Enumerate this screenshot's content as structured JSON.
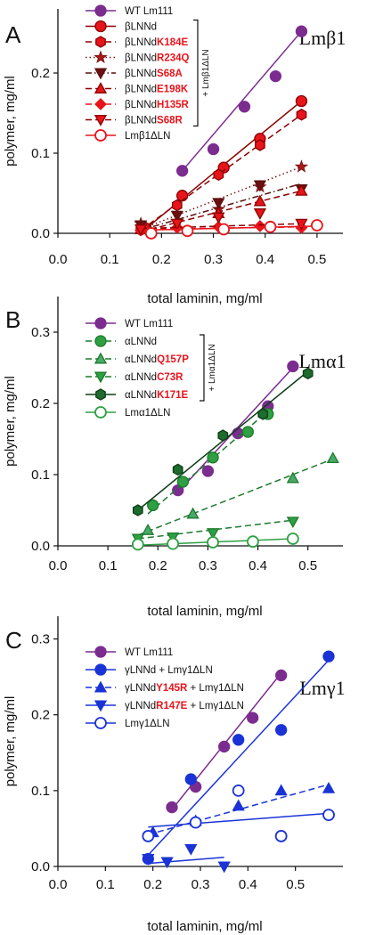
{
  "chart_data": [
    {
      "type": "scatter",
      "panel_label": "A",
      "title": "Lmβ1",
      "xlabel": "total laminin, mg/ml",
      "ylabel": "polymer, mg/ml",
      "xlim": [
        0.0,
        0.55
      ],
      "ylim": [
        0.0,
        0.28
      ],
      "xticks": [
        "0.0",
        "0.1",
        "0.2",
        "0.3",
        "0.4",
        "0.5"
      ],
      "yticks": [
        "0.0",
        "0.1",
        "0.2"
      ],
      "bracket_label": "+ Lmβ1ΔLN",
      "series": [
        {
          "name": "WT Lm111",
          "name_parts": [
            [
              "WT Lm111",
              "#111111"
            ]
          ],
          "color": "#7b2c8f",
          "marker": "circle",
          "fill": "#7b2c8f",
          "line": "solid",
          "x": [
            0.24,
            0.3,
            0.36,
            0.42,
            0.47
          ],
          "y": [
            0.078,
            0.105,
            0.158,
            0.196,
            0.252
          ],
          "fit": [
            [
              0.24,
              0.078
            ],
            [
              0.47,
              0.252
            ]
          ]
        },
        {
          "name": "βLNNd",
          "name_parts": [
            [
              "βLNNd",
              "#111111"
            ]
          ],
          "color": "#8b0000",
          "marker": "circle",
          "fill": "#e8141b",
          "line": "solid",
          "x": [
            0.17,
            0.24,
            0.32,
            0.39,
            0.47
          ],
          "y": [
            0.006,
            0.047,
            0.082,
            0.118,
            0.165
          ],
          "fit": [
            [
              0.17,
              0.006
            ],
            [
              0.47,
              0.165
            ]
          ]
        },
        {
          "name": "βLNNdK184E",
          "name_parts": [
            [
              "βLNNd",
              "#111111"
            ],
            [
              "K184E",
              "#e8141b"
            ]
          ],
          "color": "#8b0000",
          "marker": "hexagon",
          "fill": "#e8141b",
          "line": "dashed",
          "x": [
            0.16,
            0.23,
            0.31,
            0.39,
            0.47
          ],
          "y": [
            0.004,
            0.035,
            0.073,
            0.11,
            0.148
          ],
          "fit": [
            [
              0.16,
              0.004
            ],
            [
              0.47,
              0.148
            ]
          ]
        },
        {
          "name": "βLNNdR234Q",
          "name_parts": [
            [
              "βLNNd",
              "#111111"
            ],
            [
              "R234Q",
              "#e8141b"
            ]
          ],
          "color": "#7a1414",
          "marker": "star",
          "fill": "#b01818",
          "line": "dotted",
          "x": [
            0.16,
            0.23,
            0.31,
            0.39,
            0.47
          ],
          "y": [
            0.012,
            0.015,
            0.03,
            0.058,
            0.083
          ],
          "fit": [
            [
              0.16,
              0.005
            ],
            [
              0.47,
              0.083
            ]
          ]
        },
        {
          "name": "βLNNdS68A",
          "name_parts": [
            [
              "βLNNd",
              "#111111"
            ],
            [
              "S68A",
              "#e8141b"
            ]
          ],
          "color": "#5a0f0f",
          "marker": "tri-down",
          "fill": "#6b1010",
          "line": "dashdot",
          "x": [
            0.16,
            0.23,
            0.31,
            0.39,
            0.47
          ],
          "y": [
            0.01,
            0.022,
            0.038,
            0.06,
            0.055
          ],
          "fit": [
            [
              0.16,
              0.004
            ],
            [
              0.47,
              0.062
            ]
          ]
        },
        {
          "name": "βLNNdE198K",
          "name_parts": [
            [
              "βLNNd",
              "#111111"
            ],
            [
              "E198K",
              "#e8141b"
            ]
          ],
          "color": "#8b0000",
          "marker": "tri-up",
          "fill": "#e8141b",
          "line": "dashed",
          "x": [
            0.16,
            0.23,
            0.31,
            0.39,
            0.47
          ],
          "y": [
            0.005,
            0.01,
            0.025,
            0.04,
            0.053
          ],
          "fit": [
            [
              0.16,
              0.002
            ],
            [
              0.47,
              0.053
            ]
          ]
        },
        {
          "name": "βLNNdH135R",
          "name_parts": [
            [
              "βLNNd",
              "#111111"
            ],
            [
              "H135R",
              "#e8141b"
            ]
          ],
          "color": "#e8141b",
          "marker": "diamond",
          "fill": "#e8141b",
          "line": "dashed",
          "x": [
            0.16,
            0.23,
            0.31,
            0.39,
            0.47
          ],
          "y": [
            0.004,
            0.007,
            0.008,
            0.009,
            0.007
          ],
          "fit": [
            [
              0.16,
              0.005
            ],
            [
              0.47,
              0.008
            ]
          ]
        },
        {
          "name": "βLNNdS68R",
          "name_parts": [
            [
              "βLNNd",
              "#111111"
            ],
            [
              "S68R",
              "#e8141b"
            ]
          ],
          "color": "#8b0000",
          "marker": "tri-down",
          "fill": "#e8141b",
          "line": "dashed",
          "x": [
            0.16,
            0.23,
            0.31,
            0.39,
            0.47
          ],
          "y": [
            0.005,
            0.012,
            0.02,
            0.025,
            0.012
          ],
          "fit": [
            [
              0.16,
              0.006
            ],
            [
              0.47,
              0.012
            ]
          ]
        },
        {
          "name": "Lmβ1ΔLN",
          "name_parts": [
            [
              "Lmβ1ΔLN",
              "#111111"
            ]
          ],
          "color": "#e8141b",
          "marker": "circle",
          "fill": "none",
          "line": "solid",
          "x": [
            0.18,
            0.25,
            0.32,
            0.41,
            0.5
          ],
          "y": [
            0.0,
            0.003,
            0.005,
            0.008,
            0.01
          ],
          "fit": [
            [
              0.17,
              0.004
            ],
            [
              0.5,
              0.009
            ]
          ]
        }
      ]
    },
    {
      "type": "scatter",
      "panel_label": "B",
      "title": "Lmα1",
      "xlabel": "total laminin, mg/ml",
      "ylabel": "polymer, mg/ml",
      "xlim": [
        0.0,
        0.57
      ],
      "ylim": [
        0.0,
        0.35
      ],
      "xticks": [
        "0.0",
        "0.1",
        "0.2",
        "0.3",
        "0.4",
        "0.5"
      ],
      "yticks": [
        "0.0",
        "0.1",
        "0.2",
        "0.3"
      ],
      "bracket_label": "+ Lmα1ΔLN",
      "series": [
        {
          "name": "WT Lm111",
          "name_parts": [
            [
              "WT Lm111",
              "#111111"
            ]
          ],
          "color": "#7b2c8f",
          "marker": "circle",
          "fill": "#7b2c8f",
          "line": "solid",
          "x": [
            0.24,
            0.3,
            0.36,
            0.42,
            0.47
          ],
          "y": [
            0.078,
            0.105,
            0.158,
            0.196,
            0.252
          ],
          "fit": [
            [
              0.24,
              0.075
            ],
            [
              0.47,
              0.25
            ]
          ]
        },
        {
          "name": "αLNNd",
          "name_parts": [
            [
              "αLNNd",
              "#111111"
            ]
          ],
          "color": "#1e7a2e",
          "marker": "circle",
          "fill": "#2ea043",
          "line": "dashed",
          "x": [
            0.19,
            0.25,
            0.31,
            0.38,
            0.42
          ],
          "y": [
            0.057,
            0.09,
            0.124,
            0.16,
            0.185
          ],
          "fit": [
            [
              0.18,
              0.045
            ],
            [
              0.43,
              0.195
            ]
          ]
        },
        {
          "name": "αLNNdQ157P",
          "name_parts": [
            [
              "αLNNd",
              "#111111"
            ],
            [
              "Q157P",
              "#e8141b"
            ]
          ],
          "color": "#1e7a2e",
          "marker": "tri-up",
          "fill": "#4aa86a",
          "line": "dashed",
          "x": [
            0.18,
            0.27,
            0.47,
            0.55
          ],
          "y": [
            0.022,
            0.045,
            0.095,
            0.123
          ],
          "fit": [
            [
              0.16,
              0.015
            ],
            [
              0.55,
              0.122
            ]
          ]
        },
        {
          "name": "αLNNdC73R",
          "name_parts": [
            [
              "αLNNd",
              "#111111"
            ],
            [
              "C73R",
              "#e8141b"
            ]
          ],
          "color": "#1e7a2e",
          "marker": "tri-down",
          "fill": "#2ea043",
          "line": "dashed",
          "x": [
            0.16,
            0.23,
            0.31,
            0.47
          ],
          "y": [
            0.01,
            0.012,
            0.018,
            0.034
          ],
          "fit": [
            [
              0.16,
              0.01
            ],
            [
              0.47,
              0.036
            ]
          ]
        },
        {
          "name": "αLNNdK171E",
          "name_parts": [
            [
              "αLNNd",
              "#111111"
            ],
            [
              "K171E",
              "#e8141b"
            ]
          ],
          "color": "#0d3d17",
          "marker": "hexagon",
          "fill": "#1e6b2e",
          "line": "solid",
          "x": [
            0.16,
            0.24,
            0.33,
            0.41,
            0.5
          ],
          "y": [
            0.05,
            0.107,
            0.155,
            0.185,
            0.242
          ],
          "fit": [
            [
              0.16,
              0.05
            ],
            [
              0.5,
              0.245
            ]
          ]
        },
        {
          "name": "Lmα1ΔLN",
          "name_parts": [
            [
              "Lmα1ΔLN",
              "#111111"
            ]
          ],
          "color": "#2ea043",
          "marker": "circle",
          "fill": "none",
          "line": "solid",
          "x": [
            0.16,
            0.23,
            0.31,
            0.39,
            0.47
          ],
          "y": [
            0.002,
            0.003,
            0.005,
            0.006,
            0.01
          ],
          "fit": [
            [
              0.16,
              0.001
            ],
            [
              0.47,
              0.01
            ]
          ]
        }
      ]
    },
    {
      "type": "scatter",
      "panel_label": "C",
      "title": "Lmγ1",
      "xlabel": "total laminin, mg/ml",
      "ylabel": "polymer, mg/ml",
      "xlim": [
        0.0,
        0.6
      ],
      "ylim": [
        0.0,
        0.33
      ],
      "xticks": [
        "0.0",
        "0.1",
        "0.2",
        "0.3",
        "0.4",
        "0.5"
      ],
      "yticks": [
        "0.0",
        "0.1",
        "0.2",
        "0.3"
      ],
      "bracket_label": "",
      "series": [
        {
          "name": "WT Lm111",
          "name_parts": [
            [
              "WT Lm111",
              "#111111"
            ]
          ],
          "color": "#7b2c8f",
          "marker": "circle",
          "fill": "#7b2c8f",
          "line": "solid",
          "x": [
            0.24,
            0.29,
            0.35,
            0.41,
            0.47
          ],
          "y": [
            0.078,
            0.105,
            0.158,
            0.196,
            0.252
          ],
          "fit": [
            [
              0.24,
              0.075
            ],
            [
              0.47,
              0.255
            ]
          ]
        },
        {
          "name": "γLNNd + Lmγ1ΔLN",
          "name_parts": [
            [
              "γLNNd + Lmγ1ΔLN",
              "#111111"
            ]
          ],
          "color": "#1a33d6",
          "marker": "circle",
          "fill": "#1a33d6",
          "line": "solid",
          "x": [
            0.19,
            0.28,
            0.38,
            0.47,
            0.57
          ],
          "y": [
            0.01,
            0.115,
            0.167,
            0.18,
            0.277
          ],
          "fit": [
            [
              0.19,
              0.015
            ],
            [
              0.57,
              0.272
            ]
          ]
        },
        {
          "name": "γLNNdY145R + Lmγ1ΔLN",
          "name_parts": [
            [
              "γLNNd",
              "#111111"
            ],
            [
              "Y145R",
              "#e8141b"
            ],
            [
              " + Lmγ1ΔLN",
              "#111111"
            ]
          ],
          "color": "#1a33d6",
          "marker": "tri-up",
          "fill": "#1a33d6",
          "line": "dashed",
          "x": [
            0.2,
            0.29,
            0.38,
            0.47,
            0.57
          ],
          "y": [
            0.045,
            0.06,
            0.08,
            0.1,
            0.103
          ],
          "fit": [
            [
              0.19,
              0.042
            ],
            [
              0.57,
              0.108
            ]
          ]
        },
        {
          "name": "γLNNdR147E + Lmγ1ΔLN",
          "name_parts": [
            [
              "γLNNd",
              "#111111"
            ],
            [
              "R147E",
              "#e8141b"
            ],
            [
              " + Lmγ1ΔLN",
              "#111111"
            ]
          ],
          "color": "#1a33d6",
          "marker": "tri-down",
          "fill": "#1a33d6",
          "line": "solid",
          "x": [
            0.19,
            0.23,
            0.28,
            0.35
          ],
          "y": [
            0.01,
            0.006,
            0.023,
            0.0
          ],
          "fit": [
            [
              0.19,
              0.004
            ],
            [
              0.35,
              0.012
            ]
          ]
        },
        {
          "name": "Lmγ1ΔLN",
          "name_parts": [
            [
              "Lmγ1ΔLN",
              "#111111"
            ]
          ],
          "color": "#1a33d6",
          "marker": "circle",
          "fill": "none",
          "line": "solid",
          "x": [
            0.19,
            0.29,
            0.38,
            0.47,
            0.57
          ],
          "y": [
            0.04,
            0.058,
            0.1,
            0.04,
            0.068
          ],
          "fit": [
            [
              0.19,
              0.052
            ],
            [
              0.57,
              0.07
            ]
          ]
        }
      ]
    }
  ]
}
